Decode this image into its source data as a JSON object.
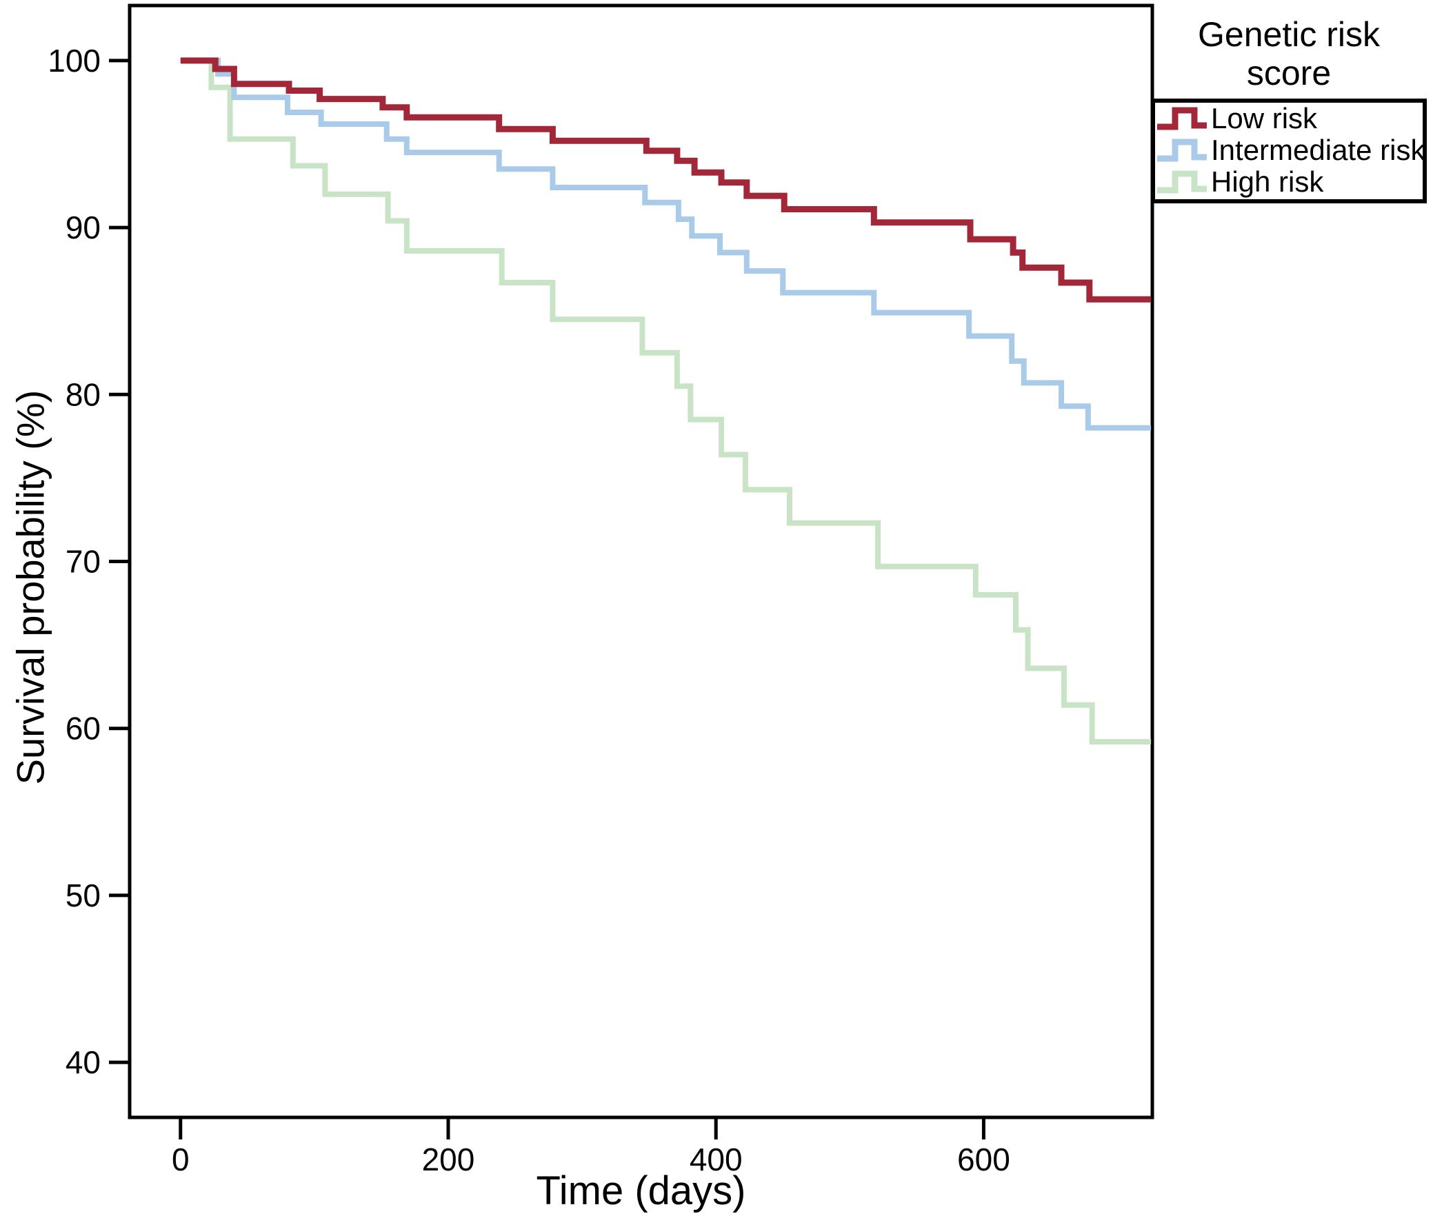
{
  "figure": {
    "background": "#ffffff",
    "axis_color": "#000000",
    "text_color": "#000000"
  },
  "chart_data": {
    "type": "line",
    "subtype": "kaplan-meier-step-survival",
    "title": "",
    "xlabel": "Time (days)",
    "ylabel": "Survival probability (%)",
    "x_ticks": [
      0,
      200,
      400,
      600
    ],
    "y_ticks": [
      100,
      90,
      80,
      70,
      60,
      50,
      40
    ],
    "xlim": [
      -38,
      726
    ],
    "ylim": [
      36.7,
      103.3
    ],
    "x_end": 725,
    "grid": false,
    "legend": {
      "title_line1": "Genetic risk",
      "title_line2": "score",
      "position": "top-right",
      "entries": [
        "Low risk",
        "Intermediate risk",
        "High risk"
      ]
    },
    "series": [
      {
        "name": "Low risk",
        "color": "#A22739",
        "line_width": 9,
        "points": [
          [
            0,
            100
          ],
          [
            26,
            99.5
          ],
          [
            40,
            98.6
          ],
          [
            81,
            98.2
          ],
          [
            104,
            97.7
          ],
          [
            151,
            97.2
          ],
          [
            169,
            96.6
          ],
          [
            238,
            95.9
          ],
          [
            278,
            95.2
          ],
          [
            348,
            94.6
          ],
          [
            371,
            94.0
          ],
          [
            384,
            93.3
          ],
          [
            404,
            92.7
          ],
          [
            423,
            91.9
          ],
          [
            451,
            91.1
          ],
          [
            518,
            90.3
          ],
          [
            590,
            89.3
          ],
          [
            622,
            88.5
          ],
          [
            629,
            87.6
          ],
          [
            658,
            86.7
          ],
          [
            679,
            85.7
          ],
          [
            725,
            85.7
          ]
        ]
      },
      {
        "name": "Intermediate risk",
        "color": "#A9CBE9",
        "line_width": 8,
        "points": [
          [
            0,
            100
          ],
          [
            28,
            99.2
          ],
          [
            40,
            97.8
          ],
          [
            80,
            96.9
          ],
          [
            105,
            96.2
          ],
          [
            154,
            95.3
          ],
          [
            169,
            94.5
          ],
          [
            238,
            93.5
          ],
          [
            278,
            92.4
          ],
          [
            347,
            91.5
          ],
          [
            372,
            90.5
          ],
          [
            382,
            89.5
          ],
          [
            403,
            88.5
          ],
          [
            423,
            87.4
          ],
          [
            450,
            86.1
          ],
          [
            518,
            84.9
          ],
          [
            589,
            83.5
          ],
          [
            621,
            82.0
          ],
          [
            630,
            80.7
          ],
          [
            658,
            79.3
          ],
          [
            678,
            78.0
          ],
          [
            725,
            78.0
          ]
        ]
      },
      {
        "name": "High risk",
        "color": "#C9E3C6",
        "line_width": 8,
        "points": [
          [
            0,
            100
          ],
          [
            23,
            98.4
          ],
          [
            37,
            95.3
          ],
          [
            84,
            93.7
          ],
          [
            108,
            92.0
          ],
          [
            155,
            90.4
          ],
          [
            169,
            88.6
          ],
          [
            240,
            86.7
          ],
          [
            278,
            84.5
          ],
          [
            345,
            82.5
          ],
          [
            371,
            80.5
          ],
          [
            381,
            78.5
          ],
          [
            404,
            76.4
          ],
          [
            422,
            74.3
          ],
          [
            455,
            72.3
          ],
          [
            521,
            69.7
          ],
          [
            594,
            68.0
          ],
          [
            624,
            65.9
          ],
          [
            633,
            63.6
          ],
          [
            660,
            61.4
          ],
          [
            681,
            59.2
          ],
          [
            725,
            59.2
          ]
        ]
      }
    ]
  }
}
